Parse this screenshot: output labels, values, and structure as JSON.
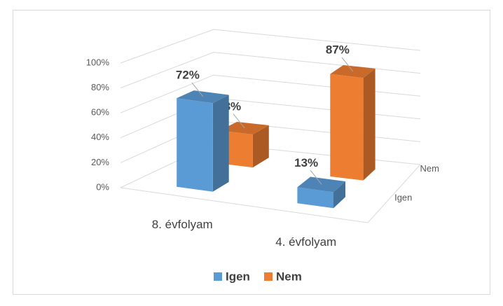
{
  "chart_data": {
    "type": "bar3d",
    "categories": [
      "8. évfolyam",
      "4. évfolyam"
    ],
    "series": [
      {
        "name": "Igen",
        "color": "#5b9bd5",
        "values": [
          72,
          13
        ],
        "value_labels": [
          "72%",
          "13%"
        ]
      },
      {
        "name": "Nem",
        "color": "#ed7d31",
        "values": [
          28,
          87
        ],
        "value_labels": [
          "28%",
          "87%"
        ]
      }
    ],
    "ylim": [
      0,
      100
    ],
    "yticks": [
      {
        "value": 0,
        "label": "0%"
      },
      {
        "value": 20,
        "label": "20%"
      },
      {
        "value": 40,
        "label": "40%"
      },
      {
        "value": 60,
        "label": "60%"
      },
      {
        "value": 80,
        "label": "80%"
      },
      {
        "value": 100,
        "label": "100%"
      }
    ],
    "grid": true,
    "legend": "bottom"
  }
}
